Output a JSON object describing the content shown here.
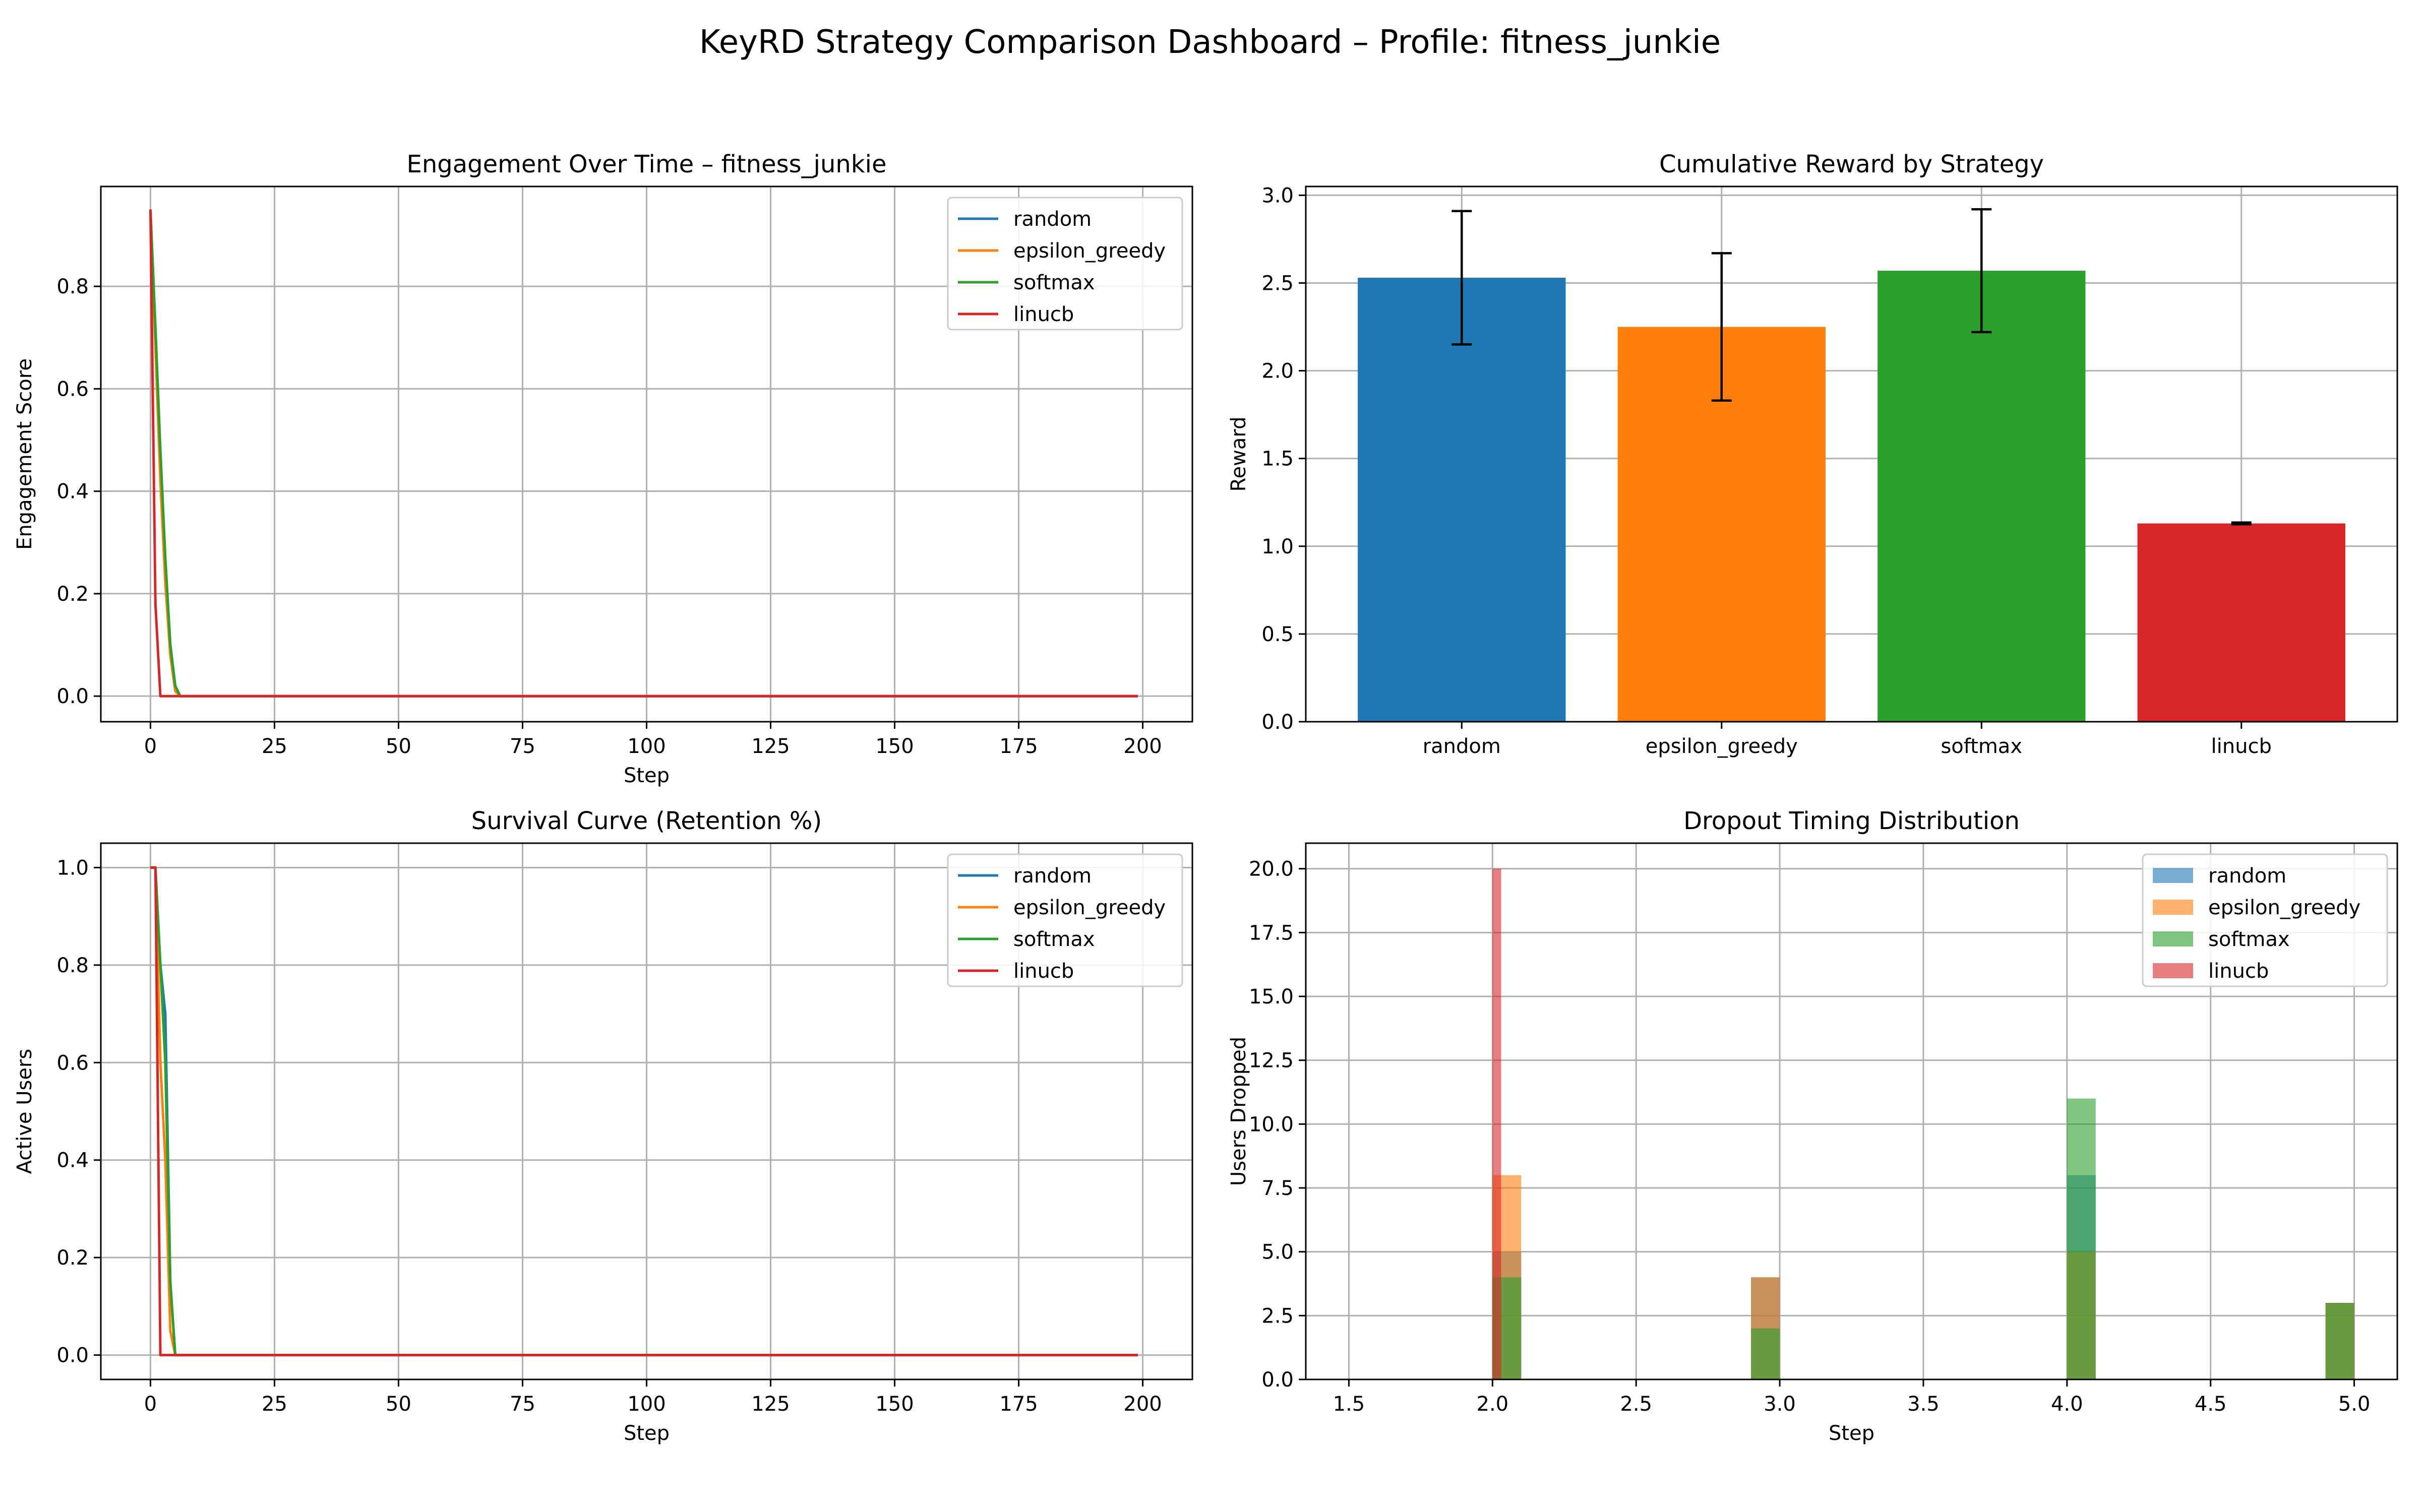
{
  "figure_title": "KeyRD Strategy Comparison Dashboard – Profile: fitness_junkie",
  "colors": {
    "random": "#1f77b4",
    "epsilon_greedy": "#ff7f0e",
    "softmax": "#2ca02c",
    "linucb": "#d62728",
    "grid": "#b0b0b0"
  },
  "chart_data": [
    {
      "type": "line",
      "title": "Engagement Over Time – fitness_junkie",
      "xlabel": "Step",
      "ylabel": "Engagement Score",
      "xlim": [
        -10,
        210
      ],
      "ylim": [
        -0.05,
        0.995
      ],
      "xticks": [
        0,
        25,
        50,
        75,
        100,
        125,
        150,
        175,
        200
      ],
      "yticks": [
        0.0,
        0.2,
        0.4,
        0.6,
        0.8
      ],
      "ytick_labels": [
        "0.0",
        "0.2",
        "0.4",
        "0.6",
        "0.8"
      ],
      "grid": true,
      "legend": "top-right",
      "series": [
        {
          "name": "random",
          "color": "#1f77b4",
          "points": [
            [
              0,
              0.95
            ],
            [
              1,
              0.7
            ],
            [
              2,
              0.45
            ],
            [
              3,
              0.25
            ],
            [
              4,
              0.1
            ],
            [
              5,
              0.02
            ],
            [
              6,
              0.0
            ],
            [
              199,
              0.0
            ]
          ]
        },
        {
          "name": "epsilon_greedy",
          "color": "#ff7f0e",
          "points": [
            [
              0,
              0.95
            ],
            [
              1,
              0.68
            ],
            [
              2,
              0.42
            ],
            [
              3,
              0.22
            ],
            [
              4,
              0.08
            ],
            [
              5,
              0.01
            ],
            [
              6,
              0.0
            ],
            [
              199,
              0.0
            ]
          ]
        },
        {
          "name": "softmax",
          "color": "#2ca02c",
          "points": [
            [
              0,
              0.95
            ],
            [
              1,
              0.72
            ],
            [
              2,
              0.48
            ],
            [
              3,
              0.27
            ],
            [
              4,
              0.1
            ],
            [
              5,
              0.02
            ],
            [
              6,
              0.0
            ],
            [
              199,
              0.0
            ]
          ]
        },
        {
          "name": "linucb",
          "color": "#d62728",
          "points": [
            [
              0,
              0.95
            ],
            [
              1,
              0.18
            ],
            [
              2,
              0.0
            ],
            [
              199,
              0.0
            ]
          ]
        }
      ]
    },
    {
      "type": "bar",
      "title": "Cumulative Reward by Strategy",
      "xlabel": "",
      "ylabel": "Reward",
      "ylim": [
        0,
        3.05
      ],
      "yticks": [
        0.0,
        0.5,
        1.0,
        1.5,
        2.0,
        2.5,
        3.0
      ],
      "ytick_labels": [
        "0.0",
        "0.5",
        "1.0",
        "1.5",
        "2.0",
        "2.5",
        "3.0"
      ],
      "grid": true,
      "categories": [
        "random",
        "epsilon_greedy",
        "softmax",
        "linucb"
      ],
      "values": [
        2.53,
        2.25,
        2.57,
        1.13
      ],
      "errors": [
        0.38,
        0.42,
        0.35,
        0.005
      ],
      "colors": [
        "#1f77b4",
        "#ff7f0e",
        "#2ca02c",
        "#d62728"
      ]
    },
    {
      "type": "line",
      "title": "Survival Curve (Retention %)",
      "xlabel": "Step",
      "ylabel": "Active Users",
      "xlim": [
        -10,
        210
      ],
      "ylim": [
        -0.05,
        1.05
      ],
      "xticks": [
        0,
        25,
        50,
        75,
        100,
        125,
        150,
        175,
        200
      ],
      "yticks": [
        0.0,
        0.2,
        0.4,
        0.6,
        0.8,
        1.0
      ],
      "ytick_labels": [
        "0.0",
        "0.2",
        "0.4",
        "0.6",
        "0.8",
        "1.0"
      ],
      "grid": true,
      "legend": "top-right",
      "series": [
        {
          "name": "random",
          "color": "#1f77b4",
          "points": [
            [
              0,
              1.0
            ],
            [
              1,
              1.0
            ],
            [
              2,
              0.8
            ],
            [
              3,
              0.7
            ],
            [
              4,
              0.15
            ],
            [
              5,
              0.0
            ],
            [
              199,
              0.0
            ]
          ]
        },
        {
          "name": "epsilon_greedy",
          "color": "#ff7f0e",
          "points": [
            [
              0,
              1.0
            ],
            [
              1,
              1.0
            ],
            [
              2,
              0.6
            ],
            [
              3,
              0.4
            ],
            [
              4,
              0.05
            ],
            [
              5,
              0.0
            ],
            [
              199,
              0.0
            ]
          ]
        },
        {
          "name": "softmax",
          "color": "#2ca02c",
          "points": [
            [
              0,
              1.0
            ],
            [
              1,
              1.0
            ],
            [
              2,
              0.8
            ],
            [
              3,
              0.6
            ],
            [
              4,
              0.15
            ],
            [
              5,
              0.0
            ],
            [
              199,
              0.0
            ]
          ]
        },
        {
          "name": "linucb",
          "color": "#d62728",
          "points": [
            [
              0,
              1.0
            ],
            [
              1,
              1.0
            ],
            [
              2,
              0.0
            ],
            [
              199,
              0.0
            ]
          ]
        }
      ]
    },
    {
      "type": "bar",
      "subtype": "histogram",
      "title": "Dropout Timing Distribution",
      "xlabel": "Step",
      "ylabel": "Users Dropped",
      "xlim": [
        1.35,
        5.15
      ],
      "ylim": [
        0,
        21
      ],
      "xticks": [
        1.5,
        2.0,
        2.5,
        3.0,
        3.5,
        4.0,
        4.5,
        5.0
      ],
      "xtick_labels": [
        "1.5",
        "2.0",
        "2.5",
        "3.0",
        "3.5",
        "4.0",
        "4.5",
        "5.0"
      ],
      "yticks": [
        0.0,
        2.5,
        5.0,
        7.5,
        10.0,
        12.5,
        15.0,
        17.5,
        20.0
      ],
      "ytick_labels": [
        "0.0",
        "2.5",
        "5.0",
        "7.5",
        "10.0",
        "12.5",
        "15.0",
        "17.5",
        "20.0"
      ],
      "grid": true,
      "legend": "top-right",
      "alpha": 0.6,
      "series": [
        {
          "name": "random",
          "color": "#1f77b4",
          "bins": [
            [
              2.0,
              2.1,
              5
            ],
            [
              2.9,
              3.0,
              4
            ],
            [
              4.0,
              4.1,
              8
            ],
            [
              4.9,
              5.0,
              3
            ]
          ]
        },
        {
          "name": "epsilon_greedy",
          "color": "#ff7f0e",
          "bins": [
            [
              2.0,
              2.1,
              8
            ],
            [
              2.9,
              3.0,
              4
            ],
            [
              4.0,
              4.1,
              5
            ],
            [
              4.9,
              5.0,
              3
            ]
          ]
        },
        {
          "name": "softmax",
          "color": "#2ca02c",
          "bins": [
            [
              2.0,
              2.1,
              4
            ],
            [
              2.9,
              3.0,
              2
            ],
            [
              4.0,
              4.1,
              11
            ],
            [
              4.9,
              5.0,
              3
            ]
          ]
        },
        {
          "name": "linucb",
          "color": "#d62728",
          "bins": [
            [
              2.0,
              2.03,
              20
            ]
          ]
        }
      ]
    }
  ]
}
